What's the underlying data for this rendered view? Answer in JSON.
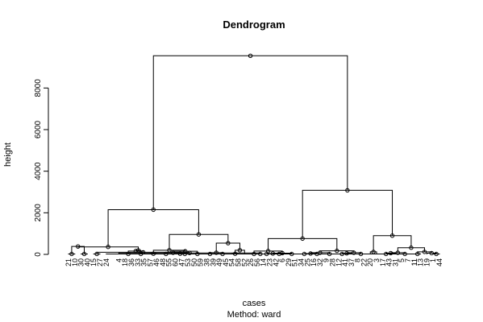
{
  "chart_data": {
    "type": "dendrogram",
    "title": "Dendrogram",
    "xlabel": "cases",
    "ylabel": "height",
    "subtitle": "Method:  ward",
    "ylim": [
      0,
      9600
    ],
    "yticks": [
      0,
      2000,
      4000,
      6000,
      8000
    ],
    "grid": false,
    "leaves": [
      "21",
      "10",
      "30",
      "40",
      "15",
      "27",
      "24",
      "11",
      "4",
      "18",
      "36",
      "33",
      "35",
      "57",
      "46",
      "48",
      "55",
      "60",
      "47",
      "53",
      "50",
      "59",
      "38",
      "39",
      "49",
      "45",
      "54",
      "58",
      "52",
      "26",
      "56",
      "14",
      "23",
      "42",
      "6",
      "29",
      "51",
      "34",
      "25",
      "16",
      "32",
      "9",
      "28",
      "12",
      "41",
      "37",
      "8",
      "22",
      "20",
      "3",
      "17",
      "43",
      "31",
      "5",
      "7",
      "11",
      "13",
      "19",
      "1",
      "44"
    ],
    "merges": [
      {
        "id": "n1",
        "left": "21",
        "right": "10",
        "height": 20
      },
      {
        "id": "n2",
        "left": "30",
        "right": "40",
        "height": 20
      },
      {
        "id": "n3",
        "left": "n1",
        "right": "n2",
        "height": 380
      },
      {
        "id": "n4",
        "left": "15",
        "right": "27",
        "height": 20
      },
      {
        "id": "n5",
        "left": "24",
        "right": "11",
        "height": 20
      },
      {
        "id": "n6",
        "left": "n5",
        "right": "4",
        "height": 70
      },
      {
        "id": "n7",
        "left": "n4",
        "right": "n6",
        "height": 100
      },
      {
        "id": "n8",
        "left": "18",
        "right": "36",
        "height": 20
      },
      {
        "id": "n9",
        "left": "n7",
        "right": "n8",
        "height": 160
      },
      {
        "id": "n10",
        "left": "33",
        "right": "35",
        "height": 20
      },
      {
        "id": "n11",
        "left": "n9",
        "right": "n10",
        "height": 190
      },
      {
        "id": "n12",
        "left": "n3",
        "right": "n11",
        "height": 360
      },
      {
        "id": "n13",
        "left": "57",
        "right": "46",
        "height": 30
      },
      {
        "id": "n14",
        "left": "48",
        "right": "55",
        "height": 20
      },
      {
        "id": "n15",
        "left": "47",
        "right": "53",
        "height": 20
      },
      {
        "id": "n16",
        "left": "60",
        "right": "n15",
        "height": 30
      },
      {
        "id": "n17",
        "left": "n14",
        "right": "n16",
        "height": 80
      },
      {
        "id": "n18",
        "left": "50",
        "right": "59",
        "height": 20
      },
      {
        "id": "n19",
        "left": "n17",
        "right": "n18",
        "height": 150
      },
      {
        "id": "n20",
        "left": "n13",
        "right": "n19",
        "height": 200
      },
      {
        "id": "n21",
        "left": "38",
        "right": "39",
        "height": 20
      },
      {
        "id": "n22",
        "left": "49",
        "right": "45",
        "height": 20
      },
      {
        "id": "n23",
        "left": "n21",
        "right": "n22",
        "height": 80
      },
      {
        "id": "n24",
        "left": "54",
        "right": "58",
        "height": 30
      },
      {
        "id": "n25",
        "left": "n24",
        "right": "52",
        "height": 200
      },
      {
        "id": "n26",
        "left": "n23",
        "right": "n25",
        "height": 540
      },
      {
        "id": "n27",
        "left": "n20",
        "right": "n26",
        "height": 960
      },
      {
        "id": "n28",
        "left": "n12",
        "right": "n27",
        "height": 2150
      },
      {
        "id": "n29",
        "left": "26",
        "right": "56",
        "height": 20
      },
      {
        "id": "n30",
        "left": "14",
        "right": "23",
        "height": 20
      },
      {
        "id": "n31",
        "left": "42",
        "right": "6",
        "height": 20
      },
      {
        "id": "n32",
        "left": "n30",
        "right": "n31",
        "height": 40
      },
      {
        "id": "n33",
        "left": "29",
        "right": "51",
        "height": 20
      },
      {
        "id": "n34",
        "left": "n32",
        "right": "n33",
        "height": 60
      },
      {
        "id": "n35",
        "left": "n29",
        "right": "n34",
        "height": 160
      },
      {
        "id": "n36",
        "left": "34",
        "right": "25",
        "height": 20
      },
      {
        "id": "n37",
        "left": "16",
        "right": "32",
        "height": 20
      },
      {
        "id": "n38",
        "left": "n36",
        "right": "n37",
        "height": 40
      },
      {
        "id": "n39",
        "left": "9",
        "right": "28",
        "height": 20
      },
      {
        "id": "n40",
        "left": "n38",
        "right": "n39",
        "height": 80
      },
      {
        "id": "n41",
        "left": "12",
        "right": "41",
        "height": 20
      },
      {
        "id": "n42",
        "left": "n41",
        "right": "37",
        "height": 50
      },
      {
        "id": "n43",
        "left": "8",
        "right": "22",
        "height": 20
      },
      {
        "id": "n44",
        "left": "n42",
        "right": "n43",
        "height": 80
      },
      {
        "id": "n45",
        "left": "n40",
        "right": "n44",
        "height": 170
      },
      {
        "id": "n46",
        "left": "n35",
        "right": "n45",
        "height": 760
      },
      {
        "id": "n47",
        "left": "20",
        "right": "3",
        "height": 120
      },
      {
        "id": "n48",
        "left": "17",
        "right": "43",
        "height": 20
      },
      {
        "id": "n49",
        "left": "n48",
        "right": "31",
        "height": 60
      },
      {
        "id": "n50",
        "left": "5",
        "right": "7",
        "height": 20
      },
      {
        "id": "n51",
        "left": "n49",
        "right": "n50",
        "height": 80
      },
      {
        "id": "n52",
        "left": "11",
        "right": "13",
        "height": 20
      },
      {
        "id": "n53",
        "left": "1",
        "right": "44",
        "height": 20
      },
      {
        "id": "n54",
        "left": "19",
        "right": "n53",
        "height": 60
      },
      {
        "id": "n55",
        "left": "n52",
        "right": "n54",
        "height": 120
      },
      {
        "id": "n56",
        "left": "n51",
        "right": "n55",
        "height": 320
      },
      {
        "id": "n57",
        "left": "n47",
        "right": "n56",
        "height": 900
      },
      {
        "id": "n58",
        "left": "n46",
        "right": "n57",
        "height": 3080
      },
      {
        "id": "n59",
        "left": "n28",
        "right": "n58",
        "height": 9550
      }
    ]
  }
}
